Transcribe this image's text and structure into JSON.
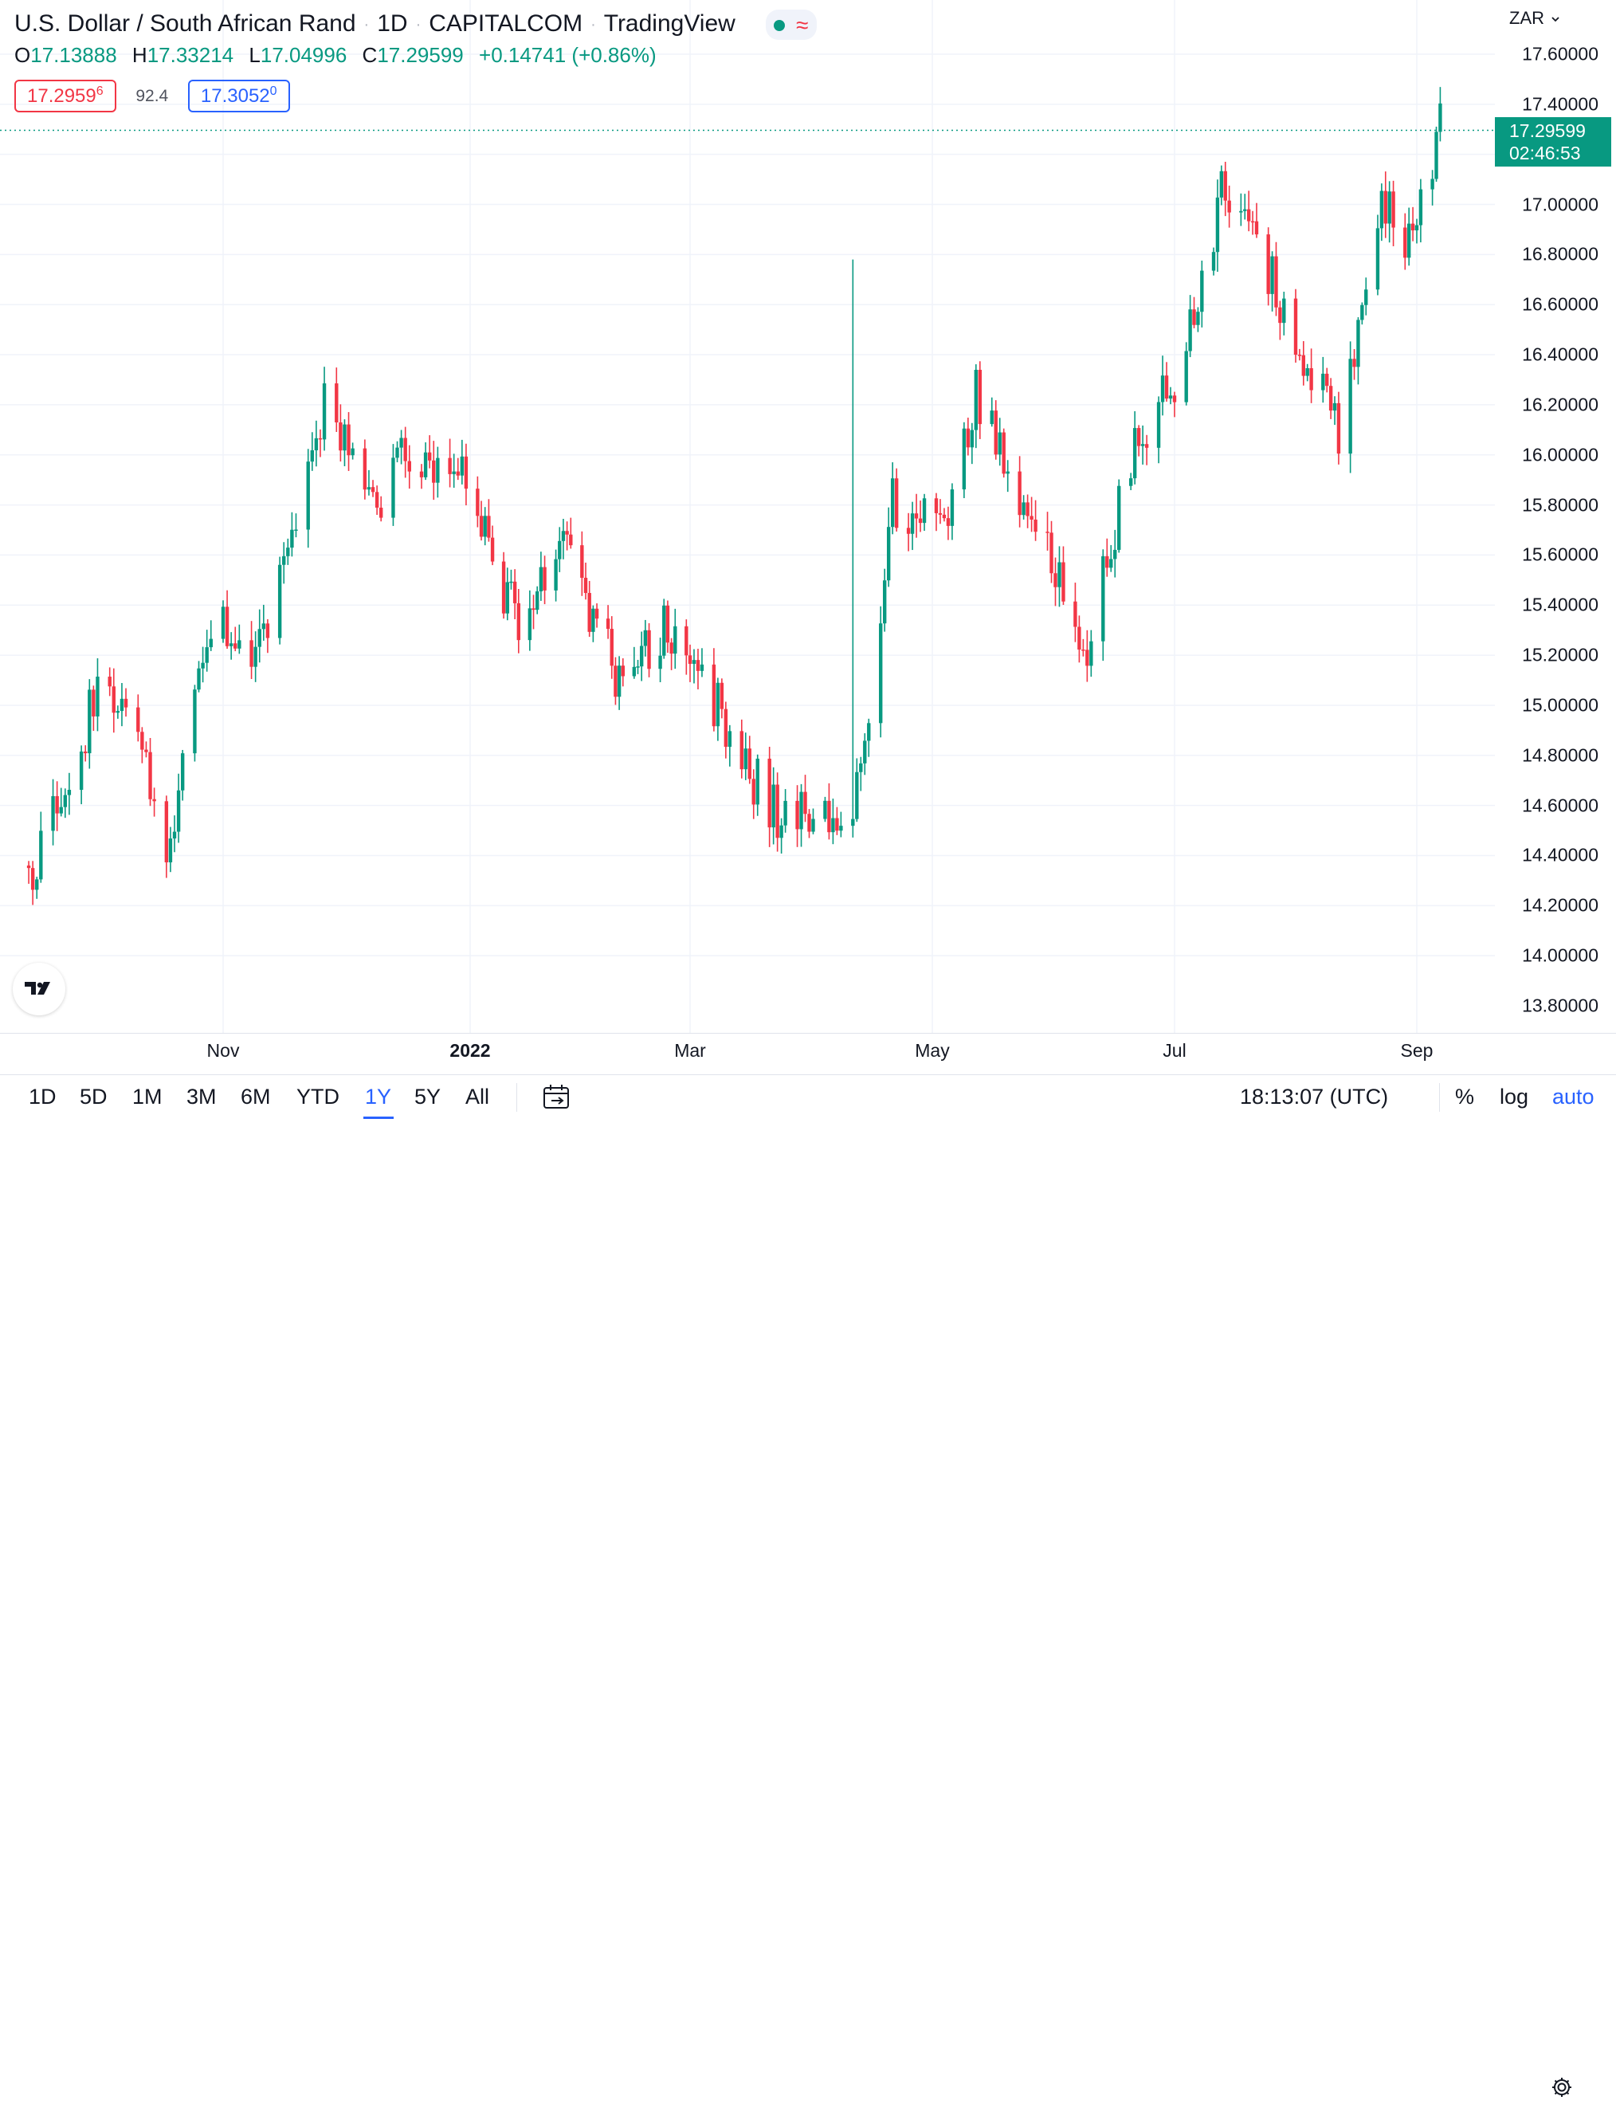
{
  "header": {
    "symbol": "U.S. Dollar / South African Rand",
    "interval": "1D",
    "exchange": "CAPITALCOM",
    "source": "TradingView",
    "currency": "ZAR"
  },
  "ohlc": {
    "o_label": "O",
    "o": "17.13888",
    "h_label": "H",
    "h": "17.33214",
    "l_label": "L",
    "l": "17.04996",
    "c_label": "C",
    "c": "17.29599",
    "change": "+0.14741 (+0.86%)"
  },
  "bidask": {
    "bid_main": "17.2959",
    "bid_sup": "6",
    "spread": "92.4",
    "ask_main": "17.3052",
    "ask_sup": "0"
  },
  "current_price": {
    "price": "17.29599",
    "countdown": "02:46:53"
  },
  "price_scale": {
    "labels": [
      "17.60000",
      "17.40000",
      "17.00000",
      "16.80000",
      "16.60000",
      "16.40000",
      "16.20000",
      "16.00000",
      "15.80000",
      "15.60000",
      "15.40000",
      "15.20000",
      "15.00000",
      "14.80000",
      "14.60000",
      "14.40000",
      "14.20000",
      "14.00000",
      "13.80000"
    ]
  },
  "time_axis": {
    "ticks": [
      {
        "label": "Nov",
        "bold": false
      },
      {
        "label": "2022",
        "bold": true
      },
      {
        "label": "Mar",
        "bold": false
      },
      {
        "label": "May",
        "bold": false
      },
      {
        "label": "Jul",
        "bold": false
      },
      {
        "label": "Sep",
        "bold": false
      }
    ]
  },
  "bottom_bar": {
    "ranges": [
      "1D",
      "5D",
      "1M",
      "3M",
      "6M",
      "YTD",
      "1Y",
      "5Y",
      "All"
    ],
    "active_range": "1Y",
    "clock": "18:13:07 (UTC)",
    "percent": "%",
    "log": "log",
    "auto": "auto"
  },
  "colors": {
    "up": "#089981",
    "down": "#f23645",
    "grid": "#f0f3fa",
    "accent": "#2962ff"
  },
  "icons": {
    "logo": "tradingview-logo-icon",
    "calendar": "calendar-goto-icon",
    "settings": "gear-icon",
    "dropdown": "chevron-down-icon"
  },
  "chart_data": {
    "type": "candlestick",
    "title": "U.S. Dollar / South African Rand",
    "xlabel": "",
    "ylabel": "",
    "ylim": [
      13.7,
      17.8
    ],
    "x_range": [
      "2021-09-14",
      "2022-09-07"
    ],
    "grid": true,
    "series": [
      {
        "name": "USDZAR",
        "points": [
          {
            "date": "2021-09-14",
            "close": 14.28
          },
          {
            "date": "2021-10-01",
            "close": 15.05
          },
          {
            "date": "2021-10-12",
            "close": 14.85
          },
          {
            "date": "2021-10-19",
            "close": 14.4
          },
          {
            "date": "2021-10-28",
            "close": 15.3
          },
          {
            "date": "2021-11-10",
            "close": 15.25
          },
          {
            "date": "2021-11-26",
            "close": 16.2
          },
          {
            "date": "2021-12-10",
            "close": 15.85
          },
          {
            "date": "2021-12-16",
            "close": 16.0
          },
          {
            "date": "2021-12-31",
            "close": 15.9
          },
          {
            "date": "2022-01-14",
            "close": 15.3
          },
          {
            "date": "2022-01-26",
            "close": 15.65
          },
          {
            "date": "2022-02-10",
            "close": 15.1
          },
          {
            "date": "2022-02-22",
            "close": 15.3
          },
          {
            "date": "2022-03-08",
            "close": 15.0
          },
          {
            "date": "2022-03-21",
            "close": 14.58
          },
          {
            "date": "2022-04-05",
            "close": 14.55
          },
          {
            "date": "2022-04-12",
            "close": 14.65
          },
          {
            "date": "2022-04-21",
            "close": 15.8
          },
          {
            "date": "2022-05-05",
            "close": 15.7
          },
          {
            "date": "2022-05-12",
            "close": 16.25
          },
          {
            "date": "2022-05-31",
            "close": 15.55
          },
          {
            "date": "2022-06-09",
            "close": 15.25
          },
          {
            "date": "2022-06-20",
            "close": 16.0
          },
          {
            "date": "2022-07-01",
            "close": 16.3
          },
          {
            "date": "2022-07-14",
            "close": 17.1
          },
          {
            "date": "2022-07-25",
            "close": 16.75
          },
          {
            "date": "2022-08-01",
            "close": 16.45
          },
          {
            "date": "2022-08-12",
            "close": 16.1
          },
          {
            "date": "2022-08-23",
            "close": 17.0
          },
          {
            "date": "2022-08-30",
            "close": 16.85
          },
          {
            "date": "2022-09-07",
            "close": 17.29599
          }
        ]
      }
    ],
    "extreme_wick": {
      "date": "2022-04-11",
      "high": 16.78
    },
    "last_price": 17.29599
  }
}
